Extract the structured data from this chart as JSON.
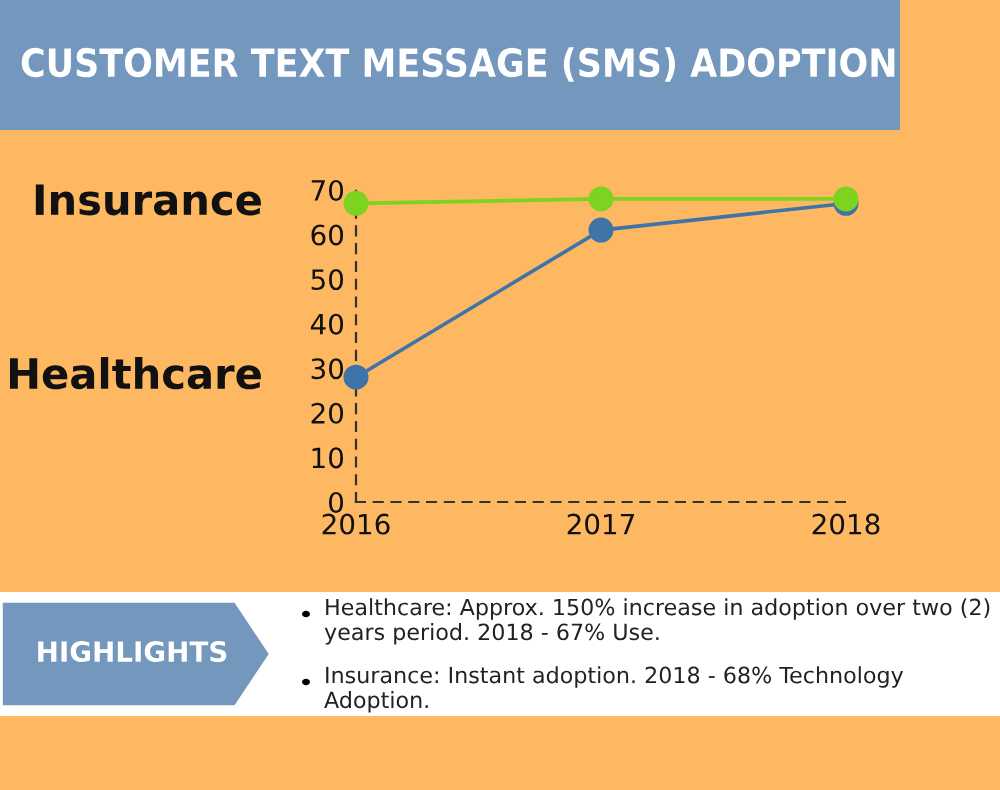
{
  "chart_data": {
    "type": "line",
    "title": "CUSTOMER TEXT MESSAGE (SMS) ADOPTION",
    "categories": [
      "2016",
      "2017",
      "2018"
    ],
    "series": [
      {
        "name": "Insurance",
        "color": "#7ed321",
        "values": [
          67,
          68,
          68
        ]
      },
      {
        "name": "Healthcare",
        "color": "#3f74a8",
        "values": [
          28,
          61,
          67
        ]
      }
    ],
    "ylim": [
      0,
      70
    ],
    "yticks": [
      0,
      10,
      20,
      30,
      40,
      50,
      60,
      70
    ],
    "marker": "circle",
    "line_style": "solid",
    "grid": false,
    "legend": false,
    "annotations": [
      "HIGHLIGHTS",
      "Healthcare: Approx. 150% increase in adoption over two (2) years period. 2018 - 67% Use.",
      "Insurance: Instant adoption. 2018 - 68% Technology Adoption."
    ]
  }
}
